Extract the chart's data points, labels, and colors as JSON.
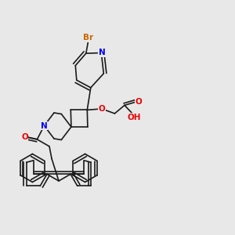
{
  "background_color": "#e8e8e8",
  "bond_color": "#1a1a1a",
  "atom_colors": {
    "N": "#0000ee",
    "O": "#ee0000",
    "Br": "#cc6600",
    "C": "#1a1a1a"
  },
  "line_width": 1.2,
  "font_size_atom": 7.5,
  "font_size_small": 6.5
}
